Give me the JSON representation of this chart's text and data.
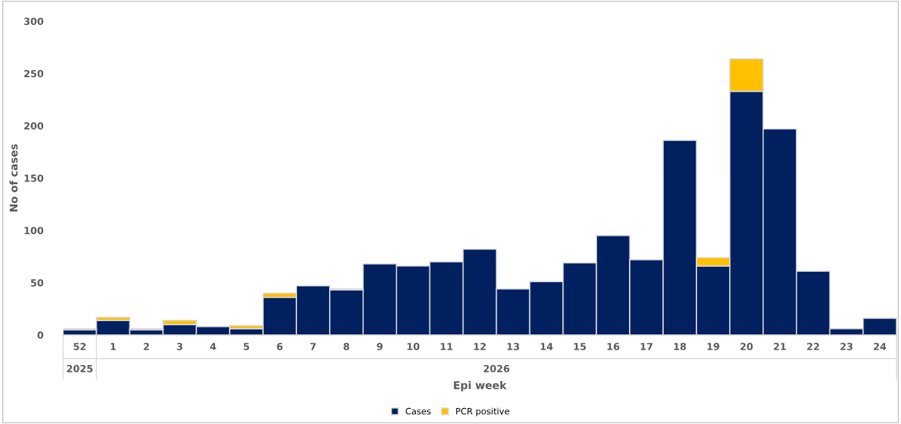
{
  "chart_data": {
    "type": "bar",
    "stacked": true,
    "xlabel": "Epi week",
    "ylabel": "No of cases",
    "categories": [
      "52",
      "1",
      "2",
      "3",
      "4",
      "5",
      "6",
      "7",
      "8",
      "9",
      "10",
      "11",
      "12",
      "13",
      "14",
      "15",
      "16",
      "17",
      "18",
      "19",
      "20",
      "21",
      "22",
      "23",
      "24"
    ],
    "series": [
      {
        "name": "Cases",
        "color": "#002060",
        "values": [
          5,
          14,
          5,
          10,
          8,
          6,
          36,
          47,
          43,
          68,
          66,
          70,
          82,
          44,
          51,
          69,
          95,
          72,
          186,
          66,
          233,
          197,
          61,
          6,
          16
        ]
      },
      {
        "name": "PCR positive",
        "color": "#ffc000",
        "values": [
          1,
          3,
          1,
          4,
          0,
          3,
          4,
          0,
          1,
          0,
          0,
          0,
          0,
          0,
          0,
          0,
          0,
          0,
          0,
          8,
          31,
          0,
          0,
          0,
          0
        ]
      }
    ],
    "ylim": [
      0,
      300
    ],
    "yticks": [
      0,
      50,
      100,
      150,
      200,
      250,
      300
    ],
    "annotations": [
      "2025",
      "2026"
    ],
    "grid": false,
    "legend": "bottom"
  }
}
